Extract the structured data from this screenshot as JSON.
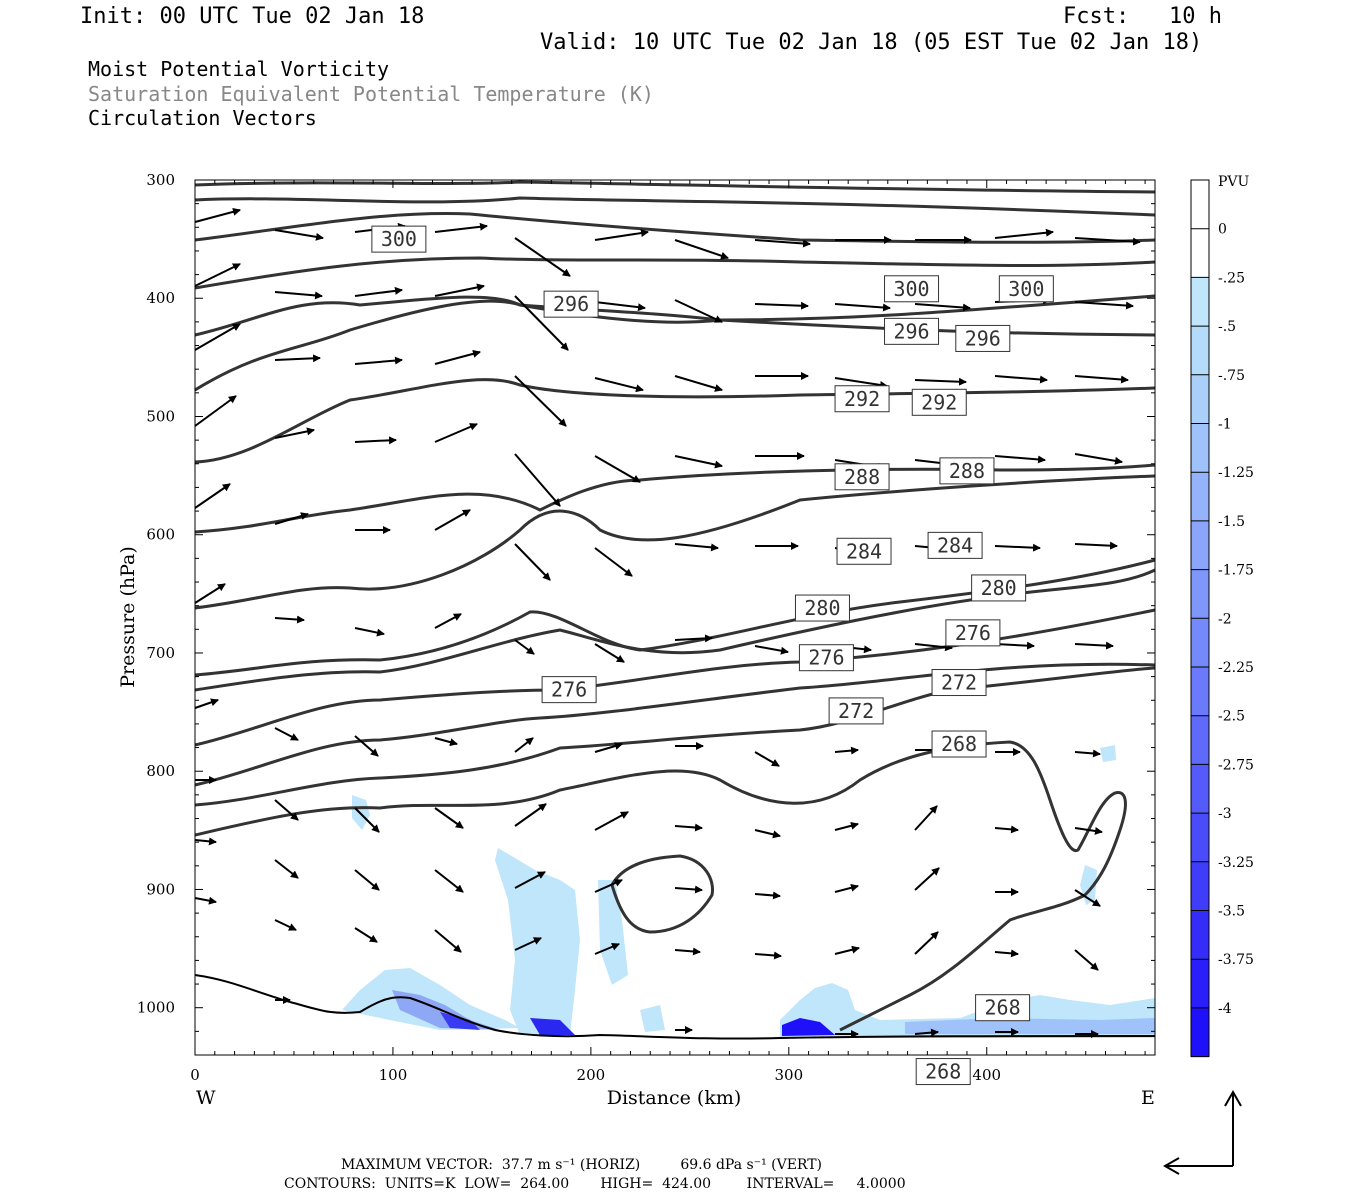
{
  "header": {
    "init": "Init: 00 UTC Tue 02 Jan 18",
    "fcst": "Fcst:   10 h",
    "valid": "Valid: 10 UTC Tue 02 Jan 18 (05 EST Tue 02 Jan 18)",
    "field1": "Moist Potential Vorticity",
    "field2": "Saturation Equivalent Potential Temperature (K)",
    "field3": "Circulation Vectors"
  },
  "footer": {
    "max_vector": "MAXIMUM VECTOR:  37.7 m s⁻¹ (HORIZ)         69.6 dPa s⁻¹ (VERT)",
    "contours": "CONTOURS:  UNITS=K  LOW=  264.00       HIGH=  424.00        INTERVAL=     4.0000"
  },
  "chart_data": {
    "type": "cross-section",
    "xlabel": "Distance (km)",
    "ylabel": "Pressure (hPa)",
    "xlim": [
      0,
      485
    ],
    "ylim": [
      1040,
      300
    ],
    "x_ticks": [
      "0",
      "100",
      "200",
      "300",
      "400"
    ],
    "x_tick_values": [
      0,
      100,
      200,
      300,
      400
    ],
    "y_ticks": [
      "300",
      "400",
      "500",
      "600",
      "700",
      "800",
      "900",
      "1000"
    ],
    "y_tick_values": [
      300,
      400,
      500,
      600,
      700,
      800,
      900,
      1000
    ],
    "left_end_label": "W",
    "right_end_label": "E",
    "colorbar": {
      "unit": "PVU",
      "labels": [
        "0",
        "-.25",
        "-.5",
        "-.75",
        "-1",
        "-1.25",
        "-1.5",
        "-1.75",
        "-2",
        "-2.25",
        "-2.5",
        "-2.75",
        "-3",
        "-3.25",
        "-3.5",
        "-3.75",
        "-4"
      ],
      "colors": [
        "#ffffff",
        "#ffffff",
        "#bfe6fa",
        "#b4dcfa",
        "#aad0fa",
        "#9fc2fa",
        "#94b3fa",
        "#8aa5fa",
        "#7f97fa",
        "#7489fa",
        "#6a7afa",
        "#5f6afa",
        "#545bfa",
        "#4a4cfa",
        "#3f3cfa",
        "#342dfa",
        "#2a1efa",
        "#1f10fa"
      ]
    },
    "contour_labels": [
      {
        "x": 103,
        "p": 350,
        "text": "300"
      },
      {
        "x": 190,
        "p": 405,
        "text": "296"
      },
      {
        "x": 362,
        "p": 392,
        "text": "300"
      },
      {
        "x": 420,
        "p": 392,
        "text": "300"
      },
      {
        "x": 362,
        "p": 428,
        "text": "296"
      },
      {
        "x": 398,
        "p": 434,
        "text": "296"
      },
      {
        "x": 337,
        "p": 485,
        "text": "292"
      },
      {
        "x": 376,
        "p": 488,
        "text": "292"
      },
      {
        "x": 337,
        "p": 551,
        "text": "288"
      },
      {
        "x": 390,
        "p": 546,
        "text": "288"
      },
      {
        "x": 338,
        "p": 614,
        "text": "284"
      },
      {
        "x": 384,
        "p": 609,
        "text": "284"
      },
      {
        "x": 406,
        "p": 645,
        "text": "280"
      },
      {
        "x": 317,
        "p": 662,
        "text": "280"
      },
      {
        "x": 393,
        "p": 683,
        "text": "276"
      },
      {
        "x": 319,
        "p": 704,
        "text": "276"
      },
      {
        "x": 189,
        "p": 731,
        "text": "276"
      },
      {
        "x": 386,
        "p": 725,
        "text": "272"
      },
      {
        "x": 334,
        "p": 749,
        "text": "272"
      },
      {
        "x": 386,
        "p": 777,
        "text": "268"
      },
      {
        "x": 408,
        "p": 1000,
        "text": "268"
      },
      {
        "x": 378,
        "p": 1054,
        "text": "268"
      }
    ],
    "isentropes_K": [
      272,
      276,
      280,
      284,
      288,
      292,
      296,
      300
    ],
    "grid": false
  }
}
